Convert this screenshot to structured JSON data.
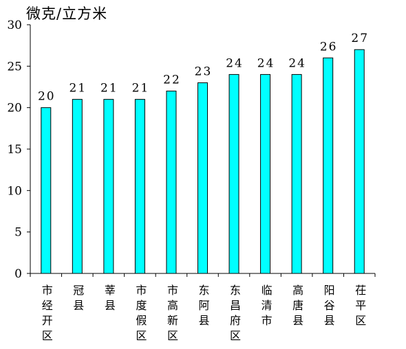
{
  "chart_data": {
    "type": "bar",
    "ylabel": "微克/立方米",
    "categories": [
      [
        "市",
        "经",
        "开",
        "区"
      ],
      [
        "冠",
        "县"
      ],
      [
        "莘",
        "县"
      ],
      [
        "市",
        "度",
        "假",
        "区"
      ],
      [
        "市",
        "高",
        "新",
        "区"
      ],
      [
        "东",
        "阿",
        "县"
      ],
      [
        "东",
        "昌",
        "府",
        "区"
      ],
      [
        "临",
        "清",
        "市"
      ],
      [
        "高",
        "唐",
        "县"
      ],
      [
        "阳",
        "谷",
        "县"
      ],
      [
        "茌",
        "平",
        "区"
      ]
    ],
    "values": [
      20,
      21,
      21,
      21,
      22,
      23,
      24,
      24,
      24,
      26,
      27
    ],
    "data_labels": [
      "20",
      "21",
      "21",
      "21",
      "22",
      "23",
      "24",
      "24",
      "24",
      "26",
      "27"
    ],
    "ylim": [
      0,
      30
    ],
    "yticks": [
      0,
      5,
      10,
      15,
      20,
      25,
      30
    ],
    "grid": false,
    "legend": "none",
    "bar_color": "#00FFFF"
  }
}
